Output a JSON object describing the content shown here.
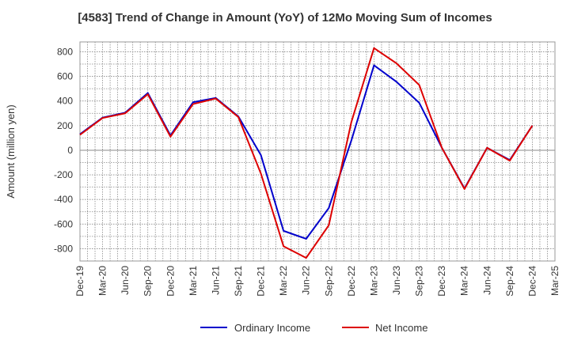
{
  "chart_data": {
    "type": "line",
    "title": "[4583]  Trend of Change in Amount (YoY) of 12Mo Moving Sum of Incomes",
    "ylabel": "Amount (million yen)",
    "xlabel": "",
    "categories": [
      "Dec-19",
      "Mar-20",
      "Jun-20",
      "Sep-20",
      "Dec-20",
      "Mar-21",
      "Jun-21",
      "Sep-21",
      "Dec-21",
      "Mar-22",
      "Jun-22",
      "Sep-22",
      "Dec-22",
      "Mar-23",
      "Jun-23",
      "Sep-23",
      "Dec-23",
      "Mar-24",
      "Jun-24",
      "Sep-24",
      "Dec-24",
      "Mar-25"
    ],
    "ylim": [
      -900,
      880
    ],
    "yticks": [
      -800,
      -600,
      -400,
      -200,
      0,
      200,
      400,
      600,
      800
    ],
    "grid": true,
    "legend_position": "bottom",
    "series": [
      {
        "name": "Ordinary Income",
        "color": "#0000cc",
        "values": [
          130,
          265,
          305,
          465,
          120,
          390,
          425,
          275,
          -40,
          -655,
          -720,
          -470,
          80,
          690,
          555,
          385,
          20,
          -310,
          20,
          -80,
          200,
          null
        ]
      },
      {
        "name": "Net Income",
        "color": "#dd0000",
        "values": [
          125,
          262,
          300,
          455,
          110,
          375,
          420,
          270,
          -190,
          -780,
          -875,
          -610,
          230,
          830,
          705,
          530,
          20,
          -315,
          20,
          -85,
          200,
          null
        ]
      }
    ]
  }
}
